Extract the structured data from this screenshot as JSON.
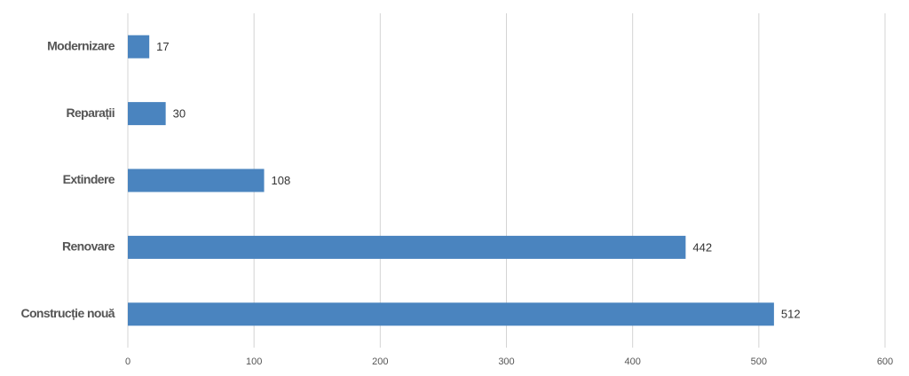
{
  "chart_data": {
    "type": "bar",
    "orientation": "horizontal",
    "categories": [
      "Modernizare",
      "Reparații",
      "Extindere",
      "Renovare",
      "Construcție nouă"
    ],
    "values": [
      17,
      30,
      108,
      442,
      512
    ],
    "color": "#4a84bf",
    "xlim": [
      0,
      600
    ],
    "xticks": [
      0,
      100,
      200,
      300,
      400,
      500,
      600
    ],
    "grid": true
  }
}
